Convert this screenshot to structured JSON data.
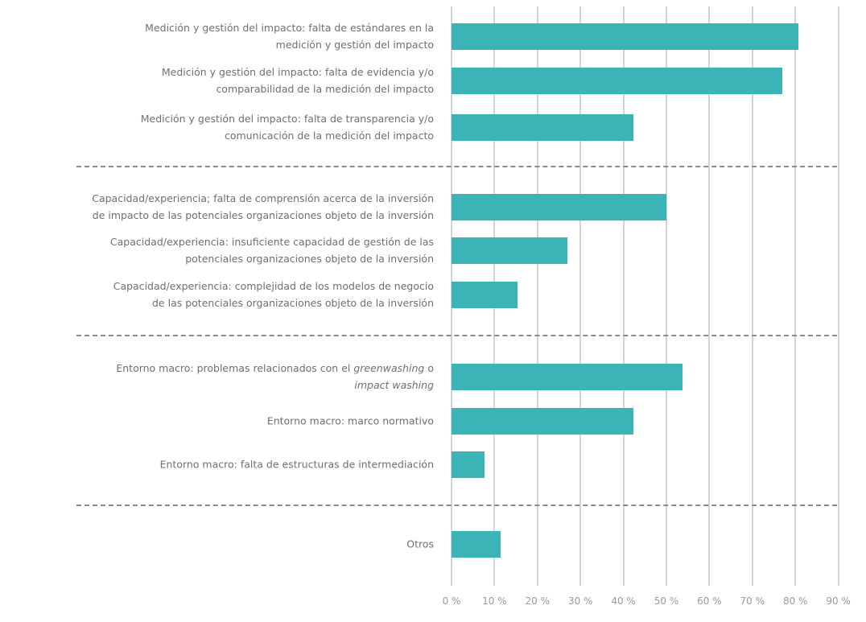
{
  "chart_data": {
    "type": "bar",
    "orientation": "horizontal",
    "title": "",
    "xlabel": "",
    "ylabel": "",
    "xlim": [
      0,
      90
    ],
    "ticks": [
      "0 %",
      "10 %",
      "20 %",
      "30 %",
      "40 %",
      "50 %",
      "60 %",
      "70 %",
      "80 %",
      "90 %"
    ],
    "tick_values": [
      0,
      10,
      20,
      30,
      40,
      50,
      60,
      70,
      80,
      90
    ],
    "grid": true,
    "bar_color": "#3bb4b8",
    "groups": [
      [
        0,
        1,
        2
      ],
      [
        3,
        4,
        5
      ],
      [
        6,
        7,
        8
      ],
      [
        9
      ]
    ],
    "categories": [
      {
        "lines": [
          [
            {
              "t": "Medición y gestión del impacto: falta de estándares en la"
            }
          ],
          [
            {
              "t": "medición y gestión del impacto"
            }
          ]
        ]
      },
      {
        "lines": [
          [
            {
              "t": "Medición y gestión del impacto: falta de evidencia y/o"
            }
          ],
          [
            {
              "t": "comparabilidad de la medición del impacto"
            }
          ]
        ]
      },
      {
        "lines": [
          [
            {
              "t": "Medición y gestión del impacto: falta de transparencia y/o"
            }
          ],
          [
            {
              "t": "comunicación de la medición del impacto"
            }
          ]
        ]
      },
      {
        "lines": [
          [
            {
              "t": "Capacidad/experiencia; falta de comprensión acerca de la inversión"
            }
          ],
          [
            {
              "t": "de impacto de las potenciales organizaciones objeto de la inversión"
            }
          ]
        ]
      },
      {
        "lines": [
          [
            {
              "t": "Capacidad/experiencia: insuficiente capacidad de gestión de las"
            }
          ],
          [
            {
              "t": "potenciales organizaciones objeto de la inversión"
            }
          ]
        ]
      },
      {
        "lines": [
          [
            {
              "t": "Capacidad/experiencia: complejidad de los modelos de negocio"
            }
          ],
          [
            {
              "t": "de las potenciales organizaciones objeto de la inversión"
            }
          ]
        ]
      },
      {
        "lines": [
          [
            {
              "t": "Entorno macro: problemas relacionados con el "
            },
            {
              "t": "greenwashing",
              "i": true
            },
            {
              "t": " o"
            }
          ],
          [
            {
              "t": "impact washing",
              "i": true
            }
          ]
        ]
      },
      {
        "lines": [
          [
            {
              "t": "Entorno macro: marco normativo"
            }
          ]
        ]
      },
      {
        "lines": [
          [
            {
              "t": "Entorno macro: falta de estructuras de intermediación"
            }
          ]
        ]
      },
      {
        "lines": [
          [
            {
              "t": "Otros"
            }
          ]
        ]
      }
    ],
    "values": [
      80.8,
      76.9,
      42.3,
      50.0,
      26.9,
      15.4,
      53.8,
      42.3,
      7.7,
      11.5
    ]
  }
}
